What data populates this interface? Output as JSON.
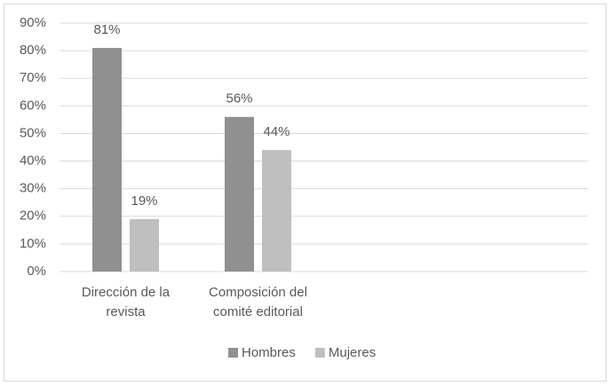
{
  "chart_data": {
    "type": "bar",
    "categories": [
      "Dirección de la revista",
      "Composición del comité editorial"
    ],
    "series": [
      {
        "name": "Hombres",
        "color": "#909090",
        "values": [
          81,
          56
        ],
        "value_labels": [
          "81%",
          "56%"
        ]
      },
      {
        "name": "Mujeres",
        "color": "#bfbfbf",
        "values": [
          19,
          44
        ],
        "value_labels": [
          "19%",
          "44%"
        ]
      }
    ],
    "ylim": [
      0,
      90
    ],
    "yticks": [
      {
        "value": 0,
        "label": "0%"
      },
      {
        "value": 10,
        "label": "10%"
      },
      {
        "value": 20,
        "label": "20%"
      },
      {
        "value": 30,
        "label": "30%"
      },
      {
        "value": 40,
        "label": "40%"
      },
      {
        "value": 50,
        "label": "50%"
      },
      {
        "value": 60,
        "label": "60%"
      },
      {
        "value": 70,
        "label": "70%"
      },
      {
        "value": 80,
        "label": "80%"
      },
      {
        "value": 90,
        "label": "90%"
      }
    ],
    "grid": true,
    "legend": "bottom"
  }
}
